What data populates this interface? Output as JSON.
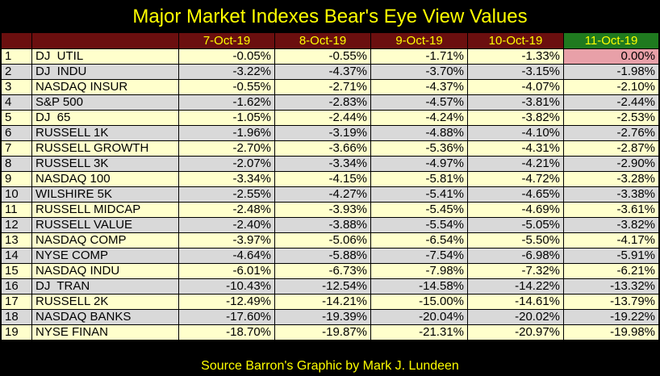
{
  "title": "Major Market Indexes Bear's Eye View Values",
  "footer": "Source Barron's   Graphic by Mark J. Lundeen",
  "colors": {
    "background": "#000000",
    "title_text": "#ffff00",
    "header_bg": "#6b0f0f",
    "header_last_bg": "#1f7a1f",
    "row_odd_bg": "#ffffcc",
    "row_even_bg": "#d9d9d9",
    "highlight_cell_bg": "#e8a0a8"
  },
  "chart_data": {
    "type": "table",
    "columns": [
      "7-Oct-19",
      "8-Oct-19",
      "9-Oct-19",
      "10-Oct-19",
      "11-Oct-19"
    ],
    "rows": [
      {
        "rank": "1",
        "name": "DJ  UTIL",
        "values": [
          "-0.05%",
          "-0.55%",
          "-1.71%",
          "-1.33%",
          "0.00%"
        ]
      },
      {
        "rank": "2",
        "name": "DJ  INDU",
        "values": [
          "-3.22%",
          "-4.37%",
          "-3.70%",
          "-3.15%",
          "-1.98%"
        ]
      },
      {
        "rank": "3",
        "name": "NASDAQ INSUR",
        "values": [
          "-0.55%",
          "-2.71%",
          "-4.37%",
          "-4.07%",
          "-2.10%"
        ]
      },
      {
        "rank": "4",
        "name": "S&P 500",
        "values": [
          "-1.62%",
          "-2.83%",
          "-4.57%",
          "-3.81%",
          "-2.44%"
        ]
      },
      {
        "rank": "5",
        "name": "DJ  65",
        "values": [
          "-1.05%",
          "-2.44%",
          "-4.24%",
          "-3.82%",
          "-2.53%"
        ]
      },
      {
        "rank": "6",
        "name": "RUSSELL 1K",
        "values": [
          "-1.96%",
          "-3.19%",
          "-4.88%",
          "-4.10%",
          "-2.76%"
        ]
      },
      {
        "rank": "7",
        "name": "RUSSELL GROWTH",
        "values": [
          "-2.70%",
          "-3.66%",
          "-5.36%",
          "-4.31%",
          "-2.87%"
        ]
      },
      {
        "rank": "8",
        "name": "RUSSELL 3K",
        "values": [
          "-2.07%",
          "-3.34%",
          "-4.97%",
          "-4.21%",
          "-2.90%"
        ]
      },
      {
        "rank": "9",
        "name": "NASDAQ 100",
        "values": [
          "-3.34%",
          "-4.15%",
          "-5.81%",
          "-4.72%",
          "-3.28%"
        ]
      },
      {
        "rank": "10",
        "name": "WILSHIRE 5K",
        "values": [
          "-2.55%",
          "-4.27%",
          "-5.41%",
          "-4.65%",
          "-3.38%"
        ]
      },
      {
        "rank": "11",
        "name": "RUSSELL MIDCAP",
        "values": [
          "-2.48%",
          "-3.93%",
          "-5.45%",
          "-4.69%",
          "-3.61%"
        ]
      },
      {
        "rank": "12",
        "name": "RUSSELL VALUE",
        "values": [
          "-2.40%",
          "-3.88%",
          "-5.54%",
          "-5.05%",
          "-3.82%"
        ]
      },
      {
        "rank": "13",
        "name": "NASDAQ COMP",
        "values": [
          "-3.97%",
          "-5.06%",
          "-6.54%",
          "-5.50%",
          "-4.17%"
        ]
      },
      {
        "rank": "14",
        "name": "NYSE COMP",
        "values": [
          "-4.64%",
          "-5.88%",
          "-7.54%",
          "-6.98%",
          "-5.91%"
        ]
      },
      {
        "rank": "15",
        "name": "NASDAQ INDU",
        "values": [
          "-6.01%",
          "-6.73%",
          "-7.98%",
          "-7.32%",
          "-6.21%"
        ]
      },
      {
        "rank": "16",
        "name": "DJ  TRAN",
        "values": [
          "-10.43%",
          "-12.54%",
          "-14.58%",
          "-14.22%",
          "-13.32%"
        ]
      },
      {
        "rank": "17",
        "name": "RUSSELL 2K",
        "values": [
          "-12.49%",
          "-14.21%",
          "-15.00%",
          "-14.61%",
          "-13.79%"
        ]
      },
      {
        "rank": "18",
        "name": "NASDAQ BANKS",
        "values": [
          "-17.60%",
          "-19.39%",
          "-20.04%",
          "-20.02%",
          "-19.22%"
        ]
      },
      {
        "rank": "19",
        "name": "NYSE FINAN",
        "values": [
          "-18.70%",
          "-19.87%",
          "-21.31%",
          "-20.97%",
          "-19.98%"
        ]
      }
    ],
    "highlight": {
      "row": 0,
      "col": 4
    }
  }
}
